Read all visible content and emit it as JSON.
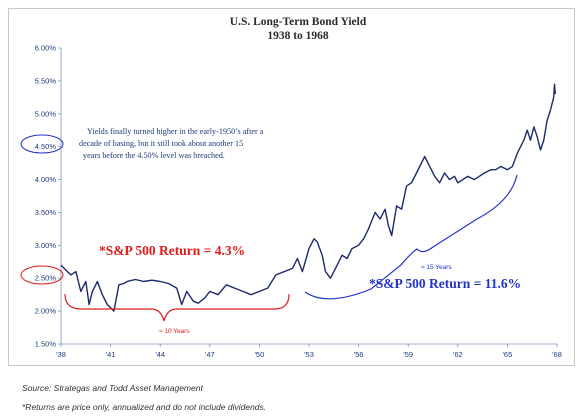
{
  "chart_data": {
    "type": "line",
    "title": "U.S. Long-Term Bond Yield",
    "subtitle": "1938 to 1968",
    "xlabel": "",
    "ylabel": "",
    "ylim": [
      1.5,
      6.0
    ],
    "xlim": [
      1938,
      1968
    ],
    "y_ticks": [
      "1.50%",
      "2.00%",
      "2.50%",
      "3.00%",
      "3.50%",
      "4.00%",
      "4.50%",
      "5.00%",
      "5.50%",
      "6.00%"
    ],
    "x_ticks": [
      "'38",
      "'41",
      "'44",
      "'47",
      "'50",
      "'53",
      "'56",
      "'59",
      "'62",
      "'65",
      "'68"
    ],
    "grid": false,
    "line_color": "#1a2a6c",
    "x": [
      1938.0,
      1938.3,
      1938.6,
      1938.9,
      1939.2,
      1939.5,
      1939.7,
      1939.9,
      1940.2,
      1940.5,
      1940.8,
      1941.0,
      1941.2,
      1941.5,
      1941.8,
      1942.0,
      1942.5,
      1943.0,
      1943.5,
      1944.0,
      1944.5,
      1945.0,
      1945.3,
      1945.6,
      1946.0,
      1946.3,
      1946.7,
      1947.0,
      1947.5,
      1948.0,
      1948.5,
      1949.0,
      1949.5,
      1950.0,
      1950.5,
      1951.0,
      1951.5,
      1952.0,
      1952.3,
      1952.6,
      1953.0,
      1953.3,
      1953.5,
      1953.8,
      1954.0,
      1954.3,
      1954.6,
      1955.0,
      1955.3,
      1955.6,
      1956.0,
      1956.3,
      1956.6,
      1957.0,
      1957.3,
      1957.6,
      1957.8,
      1958.0,
      1958.3,
      1958.6,
      1958.9,
      1959.2,
      1959.5,
      1959.8,
      1960.0,
      1960.3,
      1960.6,
      1960.9,
      1961.2,
      1961.5,
      1961.8,
      1962.0,
      1962.3,
      1962.6,
      1963.0,
      1963.3,
      1963.6,
      1964.0,
      1964.3,
      1964.6,
      1965.0,
      1965.3,
      1965.6,
      1966.0,
      1966.2,
      1966.4,
      1966.6,
      1966.8,
      1967.0,
      1967.2,
      1967.4,
      1967.6,
      1967.7,
      1967.8,
      1967.85,
      1967.9
    ],
    "values": [
      2.7,
      2.62,
      2.55,
      2.6,
      2.3,
      2.45,
      2.1,
      2.3,
      2.45,
      2.25,
      2.1,
      2.05,
      2.0,
      2.4,
      2.42,
      2.45,
      2.48,
      2.45,
      2.47,
      2.45,
      2.42,
      2.35,
      2.1,
      2.3,
      2.15,
      2.12,
      2.2,
      2.3,
      2.25,
      2.4,
      2.35,
      2.3,
      2.25,
      2.3,
      2.35,
      2.55,
      2.6,
      2.65,
      2.8,
      2.6,
      2.95,
      3.1,
      3.05,
      2.85,
      2.6,
      2.5,
      2.65,
      2.85,
      2.8,
      2.95,
      3.0,
      3.1,
      3.25,
      3.5,
      3.4,
      3.55,
      3.3,
      3.15,
      3.6,
      3.55,
      3.9,
      3.95,
      4.1,
      4.25,
      4.35,
      4.2,
      4.05,
      3.95,
      4.1,
      4.0,
      4.05,
      3.95,
      4.0,
      4.05,
      4.0,
      4.05,
      4.1,
      4.15,
      4.15,
      4.2,
      4.15,
      4.2,
      4.4,
      4.6,
      4.75,
      4.6,
      4.8,
      4.65,
      4.45,
      4.6,
      4.9,
      5.05,
      5.15,
      5.25,
      5.45,
      5.3
    ]
  },
  "annotation_note": "Yields finally turned higher in the early-1950’s after a decade of basing, but it still took about another 15 years before the 4.50% level was breached.",
  "annotation_red_return": "*S&P 500 Return = 4.3%",
  "annotation_red_span": "≈ 10 Years",
  "annotation_blue_return": "*S&P 500 Return = 11.6%",
  "annotation_blue_span": "≈ 15 Years",
  "colors": {
    "red": "#e11b1b",
    "blue": "#2233c8",
    "line": "#1a2a6c",
    "axis": "#1d3a7a"
  },
  "footer": {
    "source": "Source: Strategas and Todd Asset Management",
    "note": "*Returns are price only, annualized and do not include dividends."
  }
}
